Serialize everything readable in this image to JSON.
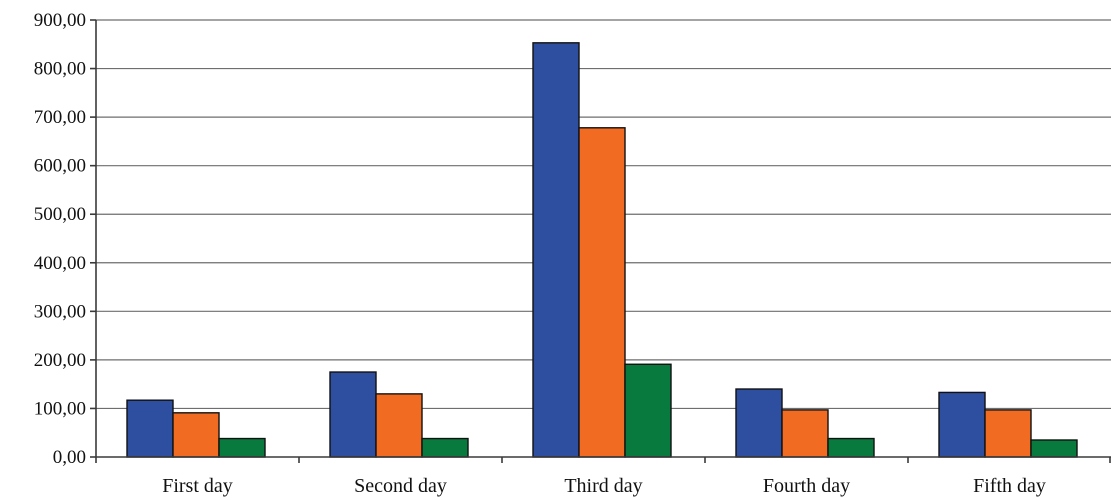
{
  "chart_data": {
    "type": "bar",
    "title": "",
    "xlabel": "",
    "ylabel": "",
    "categories": [
      "First day",
      "Second day",
      "Third day",
      "Fourth day",
      "Fifth day"
    ],
    "series": [
      {
        "color": "#2E4E9F",
        "values": [
          117,
          175,
          853,
          140,
          133
        ]
      },
      {
        "color": "#F26B22",
        "values": [
          91,
          130,
          678,
          97,
          97
        ]
      },
      {
        "color": "#087A3E",
        "values": [
          38,
          38,
          191,
          38,
          35
        ]
      }
    ],
    "ylim": [
      0,
      900
    ],
    "yticks": [
      0,
      100,
      200,
      300,
      400,
      500,
      600,
      700,
      800,
      900
    ],
    "ytick_labels": [
      "0,00",
      "100,00",
      "200,00",
      "300,00",
      "400,00",
      "500,00",
      "600,00",
      "700,00",
      "800,00",
      "900,00"
    ],
    "grid": true,
    "legend": "none"
  }
}
